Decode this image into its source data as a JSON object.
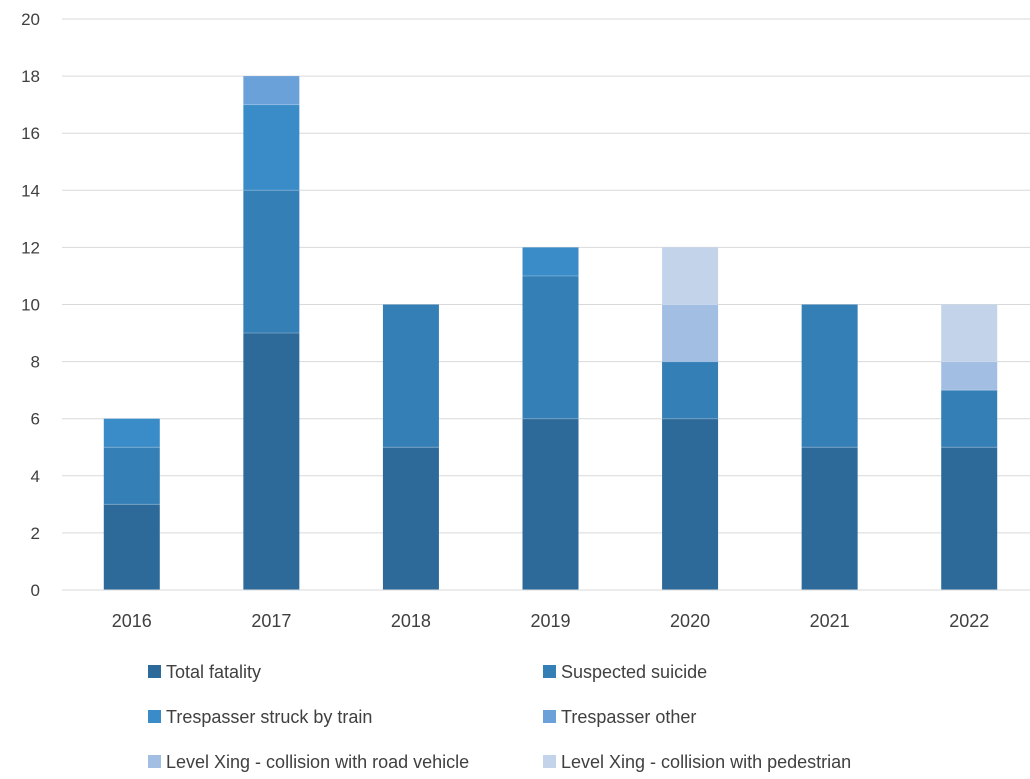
{
  "chart_data": {
    "type": "bar",
    "stacked": true,
    "title": "",
    "xlabel": "",
    "ylabel": "",
    "categories": [
      "2016",
      "2017",
      "2018",
      "2019",
      "2020",
      "2021",
      "2022"
    ],
    "ylim": [
      0,
      20
    ],
    "yticks": [
      0,
      2,
      4,
      6,
      8,
      10,
      12,
      14,
      16,
      18,
      20
    ],
    "grid": true,
    "legend_position": "bottom",
    "series": [
      {
        "name": "Total fatality",
        "color": "#2e6a99",
        "values": [
          3,
          9,
          5,
          6,
          6,
          5,
          5
        ]
      },
      {
        "name": "Suspected suicide",
        "color": "#357fb7",
        "values": [
          2,
          5,
          5,
          5,
          2,
          5,
          2
        ]
      },
      {
        "name": "Trespasser struck by train",
        "color": "#3a8cc9",
        "values": [
          1,
          3,
          0,
          1,
          0,
          0,
          0
        ]
      },
      {
        "name": "Trespasser other",
        "color": "#6ba1d9",
        "values": [
          0,
          1,
          0,
          0,
          0,
          0,
          0
        ]
      },
      {
        "name": "Level Xing - collision with road vehicle",
        "color": "#a2bee3",
        "values": [
          0,
          0,
          0,
          0,
          2,
          0,
          1
        ]
      },
      {
        "name": "Level Xing - collision with pedestrian",
        "color": "#c3d3ea",
        "values": [
          0,
          0,
          0,
          0,
          2,
          0,
          2
        ]
      }
    ]
  }
}
